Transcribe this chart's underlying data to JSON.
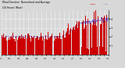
{
  "title": "Wind Direction  Normalized and Average",
  "subtitle": "(24 Hours) (New)",
  "background_color": "#d8d8d8",
  "plot_bg_color": "#d8d8d8",
  "grid_color": "#ffffff",
  "red_color": "#cc0000",
  "blue_color": "#0000cc",
  "ylim": [
    0,
    5
  ],
  "yticks": [
    1,
    2,
    3,
    4
  ],
  "ylabel_right": true,
  "n_points": 288,
  "seed": 42
}
